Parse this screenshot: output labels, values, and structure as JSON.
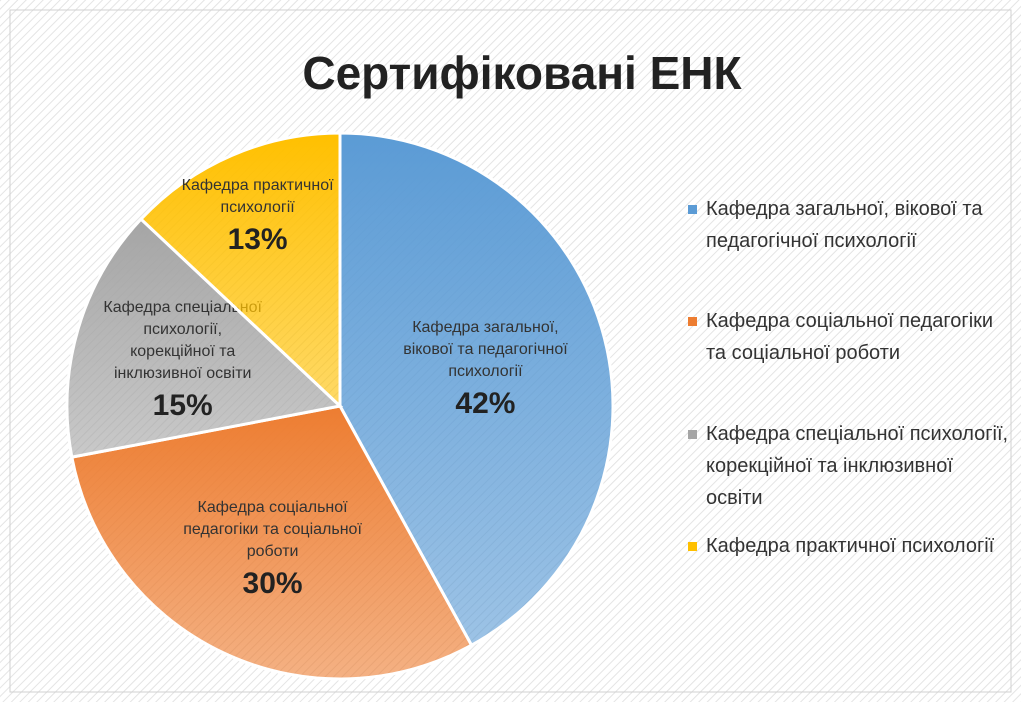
{
  "chart_data": {
    "type": "pie",
    "title": "Сертифіковані ЕНК",
    "categories": [
      "Кафедра загальної, вікової та педагогічної психології",
      "Кафедра соціальної педагогіки та соціальної роботи",
      "Кафедра спеціальної психології, корекційної та інклюзивної освіти",
      "Кафедра практичної психології"
    ],
    "values": [
      42,
      30,
      15,
      13
    ],
    "value_labels": [
      "42%",
      "30%",
      "15%",
      "13%"
    ],
    "colors": [
      "#5b9bd5",
      "#ed7d31",
      "#a5a5a5",
      "#ffc000"
    ],
    "legend": "right"
  }
}
